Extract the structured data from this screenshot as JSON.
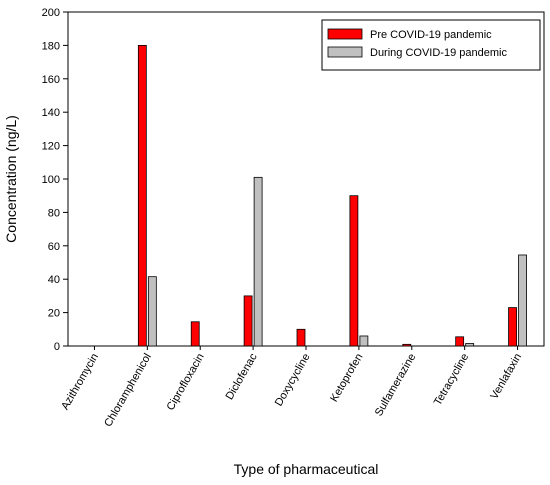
{
  "chart_data": {
    "type": "bar",
    "xlabel": "Type of pharmaceutical",
    "ylabel": "Concentration (ng/L)",
    "ylim": [
      0,
      200
    ],
    "yticks": [
      0,
      20,
      40,
      60,
      80,
      100,
      120,
      140,
      160,
      180,
      200
    ],
    "categories": [
      "Azithromycin",
      "Chloramphenicol",
      "Ciprofloxacin",
      "Diclofenac",
      "Doxycycline",
      "Ketoprofen",
      "Sulfamerazine",
      "Tetracycline",
      "Venlafaxin"
    ],
    "series": [
      {
        "name": "Pre COVID-19 pandemic",
        "color": "#ff0000",
        "values": [
          0,
          180,
          14.5,
          30,
          10,
          90,
          1,
          5.5,
          23
        ]
      },
      {
        "name": "During COVID-19 pandemic",
        "color": "#c0c0c0",
        "values": [
          0,
          41.5,
          0,
          101,
          0,
          6,
          0,
          1.5,
          54.5
        ]
      }
    ],
    "legend_position": "top-right",
    "grid": false
  }
}
